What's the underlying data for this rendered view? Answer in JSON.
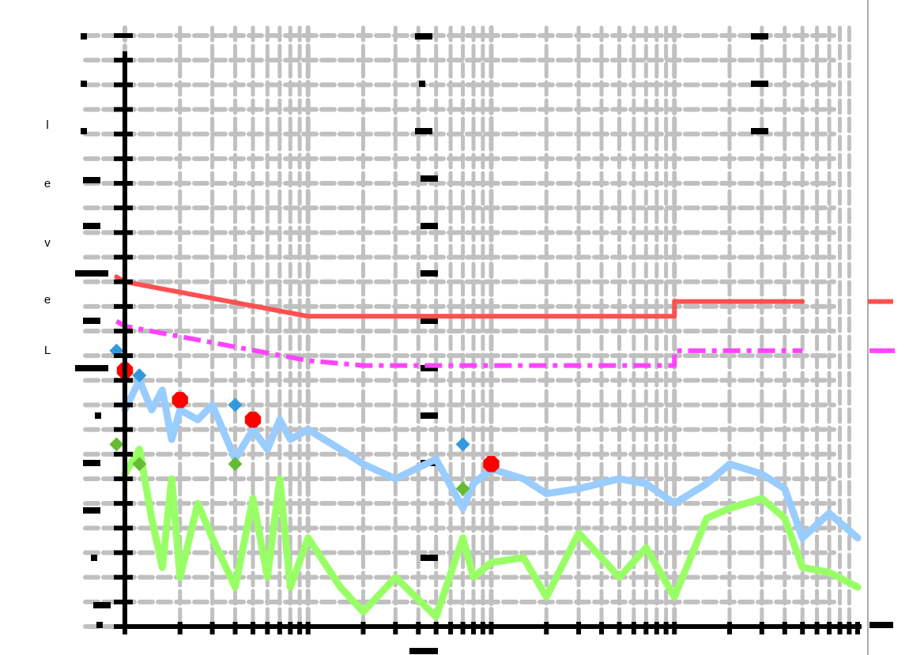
{
  "chart_data": {
    "type": "line",
    "title": "",
    "ylabel": "Level",
    "xlabel": "",
    "x_scale": "log",
    "xlim": [
      10,
      100000
    ],
    "ylim": [
      0,
      120
    ],
    "grid": true,
    "legend": "none",
    "series": [
      {
        "style": "solid",
        "color": "#ff5050",
        "x": [
          9,
          10,
          100,
          200,
          10000,
          10000,
          50000
        ],
        "y": [
          71,
          70,
          63,
          63,
          63,
          66,
          66
        ]
      },
      {
        "style": "dashdot",
        "color": "#ff44ff",
        "x": [
          9,
          10,
          100,
          200,
          10000,
          10000,
          50000
        ],
        "y": [
          62,
          61,
          54,
          53,
          53,
          56,
          56
        ]
      },
      {
        "style": "thick",
        "color": "#99ccff",
        "x": [
          10,
          12,
          14,
          16,
          18,
          20,
          25,
          30,
          40,
          50,
          60,
          70,
          80,
          100,
          150,
          200,
          300,
          500,
          700,
          800,
          1000,
          1500,
          2000,
          3000,
          5000,
          7000,
          10000,
          15000,
          20000,
          30000,
          40000,
          50000,
          70000,
          100000
        ],
        "y": [
          44,
          50,
          44,
          48,
          38,
          44,
          42,
          45,
          34,
          40,
          36,
          42,
          38,
          40,
          36,
          33,
          30,
          34,
          24,
          29,
          32,
          30,
          27,
          28,
          30,
          29,
          25,
          29,
          33,
          31,
          28,
          18,
          23,
          18
        ]
      },
      {
        "style": "thick",
        "color": "#99ff66",
        "x": [
          10,
          12,
          14,
          16,
          18,
          20,
          25,
          30,
          40,
          50,
          60,
          70,
          80,
          100,
          150,
          200,
          300,
          500,
          700,
          800,
          1000,
          1500,
          2000,
          3000,
          5000,
          7000,
          10000,
          15000,
          20000,
          30000,
          40000,
          50000,
          70000,
          100000
        ],
        "y": [
          31,
          36,
          22,
          12,
          30,
          10,
          25,
          18,
          8,
          26,
          10,
          30,
          8,
          18,
          8,
          3,
          10,
          2,
          18,
          10,
          13,
          14,
          6,
          19,
          10,
          16,
          6,
          22,
          24,
          26,
          22,
          12,
          11,
          8
        ]
      }
    ],
    "markers": [
      {
        "color": "#ff0000",
        "shape": "octagon",
        "points": [
          {
            "x": 10,
            "y": 52
          },
          {
            "x": 20,
            "y": 46
          },
          {
            "x": 50,
            "y": 42
          },
          {
            "x": 1000,
            "y": 33
          }
        ]
      },
      {
        "color": "#3399dd",
        "shape": "diamond",
        "points": [
          {
            "x": 9,
            "y": 56
          },
          {
            "x": 12,
            "y": 51
          },
          {
            "x": 40,
            "y": 45
          },
          {
            "x": 700,
            "y": 37
          }
        ]
      },
      {
        "color": "#66bb33",
        "shape": "diamond",
        "points": [
          {
            "x": 9,
            "y": 37
          },
          {
            "x": 12,
            "y": 33
          },
          {
            "x": 40,
            "y": 33
          },
          {
            "x": 700,
            "y": 28
          }
        ]
      }
    ]
  }
}
